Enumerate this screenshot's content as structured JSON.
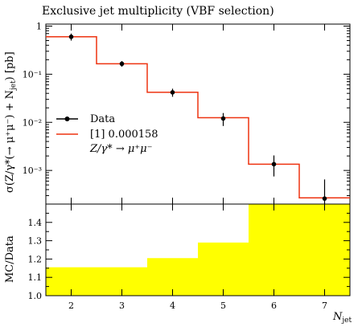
{
  "chart_data": [
    {
      "type": "line",
      "title": "Exclusive jet multiplicity (VBF selection)",
      "xlabel": "N_jet",
      "ylabel": "σ(Z/γ*(→ μ⁺μ⁻) + N_jet) [pb]",
      "yscale": "log",
      "xlim": [
        1.5,
        7.5
      ],
      "ylim": [
        0.0002,
        1.1
      ],
      "x_ticks": [
        2,
        3,
        4,
        5,
        6,
        7
      ],
      "y_ticks": [
        {
          "value": 1,
          "label": "1"
        },
        {
          "value": 0.1,
          "label": "10⁻¹"
        },
        {
          "value": 0.01,
          "label": "10⁻²"
        },
        {
          "value": 0.001,
          "label": "10⁻³"
        }
      ],
      "legend_position": "center-left",
      "series": [
        {
          "name": "Data",
          "kind": "points-with-errors",
          "x": [
            2,
            3,
            4,
            5,
            6,
            7
          ],
          "y": [
            0.6,
            0.165,
            0.042,
            0.012,
            0.00135,
            0.00026
          ],
          "y_err_low": [
            0.1,
            0.022,
            0.008,
            0.0036,
            0.0006,
            0.00016
          ],
          "y_err_high": [
            0.1,
            0.022,
            0.008,
            0.0036,
            0.0007,
            0.00039
          ],
          "color": "#000000"
        },
        {
          "name": "[1] 0.000158",
          "name_line2": "Z/γ* → μ⁺μ⁻",
          "kind": "histogram",
          "bin_edges": [
            1.5,
            2.5,
            3.5,
            4.5,
            5.5,
            6.5,
            7.5
          ],
          "values": [
            0.6,
            0.165,
            0.042,
            0.0125,
            0.00135,
            0.00027
          ],
          "color": "#ee3311"
        }
      ]
    },
    {
      "type": "bar",
      "ylabel": "MC/Data",
      "xlabel": "N_jet",
      "xlim": [
        1.5,
        7.5
      ],
      "ylim": [
        1.0,
        1.5
      ],
      "x_ticks": [
        2,
        3,
        4,
        5,
        6,
        7
      ],
      "y_ticks": [
        1.0,
        1.1,
        1.2,
        1.3,
        1.4
      ],
      "bin_edges": [
        1.5,
        2.5,
        3.5,
        4.5,
        5.5,
        6.5,
        7.5
      ],
      "values": [
        1.155,
        1.155,
        1.205,
        1.29,
        1.5,
        1.5
      ],
      "fill_color": "#ffff00"
    }
  ]
}
